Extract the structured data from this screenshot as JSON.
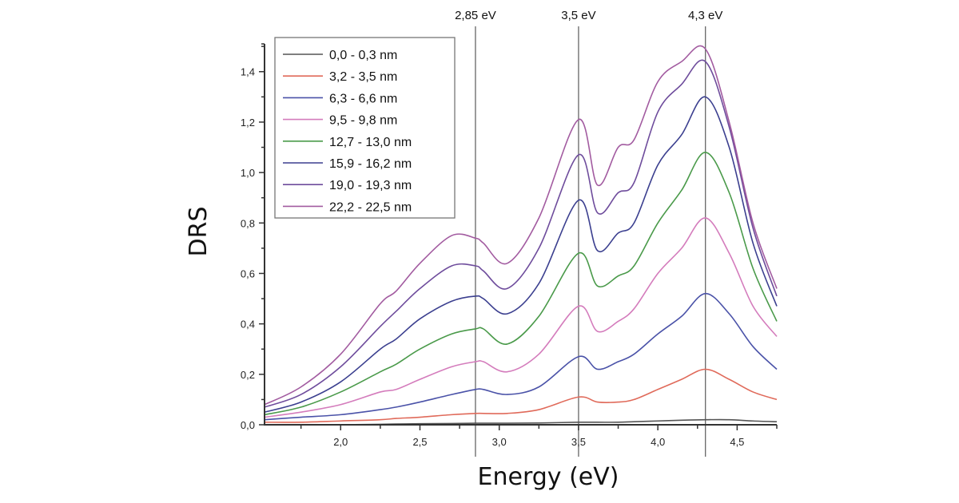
{
  "chart_data": {
    "type": "line",
    "xlabel": "Energy (eV)",
    "ylabel": "DRS",
    "xlim": [
      1.52,
      4.75
    ],
    "ylim": [
      0,
      1.51
    ],
    "grid": false,
    "legend_position": "top-left",
    "x_ticks": [
      2.0,
      2.5,
      3.0,
      3.5,
      4.0,
      4.5
    ],
    "x_tick_labels": [
      "2,0",
      "2,5",
      "3,0",
      "3,5",
      "4,0",
      "4,5"
    ],
    "y_ticks": [
      0.0,
      0.2,
      0.4,
      0.6,
      0.8,
      1.0,
      1.2,
      1.4
    ],
    "y_tick_labels": [
      "0,0",
      "0,2",
      "0,4",
      "0,6",
      "0,8",
      "1,0",
      "1,2",
      "1,4"
    ],
    "reference_lines": [
      {
        "x": 2.85,
        "label": "2,85 eV"
      },
      {
        "x": 3.5,
        "label": "3,5 eV"
      },
      {
        "x": 4.3,
        "label": "4,3 eV"
      }
    ],
    "x": [
      1.52,
      1.75,
      2.0,
      2.25,
      2.35,
      2.5,
      2.7,
      2.85,
      2.9,
      3.05,
      3.25,
      3.5,
      3.62,
      3.75,
      3.85,
      4.0,
      4.15,
      4.3,
      4.45,
      4.6,
      4.75
    ],
    "series": [
      {
        "name": "0,0 - 0,3 nm",
        "color": "#555555",
        "values": [
          0,
          0,
          0,
          0.002,
          0.003,
          0.004,
          0.005,
          0.006,
          0.006,
          0.006,
          0.007,
          0.01,
          0.01,
          0.01,
          0.012,
          0.015,
          0.018,
          0.02,
          0.02,
          0.015,
          0.012
        ]
      },
      {
        "name": "3,2 - 3,5 nm",
        "color": "#e06a5a",
        "values": [
          0.01,
          0.01,
          0.015,
          0.02,
          0.025,
          0.03,
          0.04,
          0.045,
          0.045,
          0.045,
          0.06,
          0.11,
          0.09,
          0.09,
          0.1,
          0.14,
          0.18,
          0.22,
          0.18,
          0.13,
          0.1
        ]
      },
      {
        "name": "6,3 - 6,6 nm",
        "color": "#4a52a8",
        "values": [
          0.02,
          0.03,
          0.04,
          0.06,
          0.07,
          0.09,
          0.12,
          0.14,
          0.14,
          0.12,
          0.15,
          0.27,
          0.22,
          0.25,
          0.28,
          0.36,
          0.43,
          0.52,
          0.44,
          0.31,
          0.22
        ]
      },
      {
        "name": "9,5 - 9,8 nm",
        "color": "#d47cbc",
        "values": [
          0.03,
          0.05,
          0.08,
          0.13,
          0.14,
          0.18,
          0.23,
          0.25,
          0.25,
          0.21,
          0.28,
          0.47,
          0.37,
          0.41,
          0.46,
          0.6,
          0.7,
          0.82,
          0.68,
          0.47,
          0.35
        ]
      },
      {
        "name": "12,7 - 13,0 nm",
        "color": "#4a9a4a",
        "values": [
          0.04,
          0.07,
          0.13,
          0.21,
          0.24,
          0.3,
          0.36,
          0.38,
          0.38,
          0.32,
          0.43,
          0.68,
          0.55,
          0.59,
          0.63,
          0.8,
          0.93,
          1.08,
          0.92,
          0.62,
          0.41
        ]
      },
      {
        "name": "15,9 - 16,2 nm",
        "color": "#3b3f8f",
        "values": [
          0.05,
          0.09,
          0.17,
          0.3,
          0.34,
          0.42,
          0.49,
          0.51,
          0.5,
          0.44,
          0.56,
          0.89,
          0.69,
          0.76,
          0.8,
          1.03,
          1.15,
          1.3,
          1.1,
          0.72,
          0.47
        ]
      },
      {
        "name": "19,0 - 19,3 nm",
        "color": "#6e4c9c",
        "values": [
          0.07,
          0.12,
          0.23,
          0.39,
          0.45,
          0.54,
          0.63,
          0.63,
          0.61,
          0.54,
          0.7,
          1.07,
          0.84,
          0.92,
          0.96,
          1.24,
          1.35,
          1.44,
          1.18,
          0.78,
          0.51
        ]
      },
      {
        "name": "22,2 - 22,5 nm",
        "color": "#a25ba0",
        "values": [
          0.08,
          0.15,
          0.28,
          0.48,
          0.53,
          0.64,
          0.75,
          0.74,
          0.72,
          0.64,
          0.82,
          1.21,
          0.95,
          1.1,
          1.13,
          1.36,
          1.44,
          1.49,
          1.2,
          0.8,
          0.54
        ]
      }
    ]
  }
}
